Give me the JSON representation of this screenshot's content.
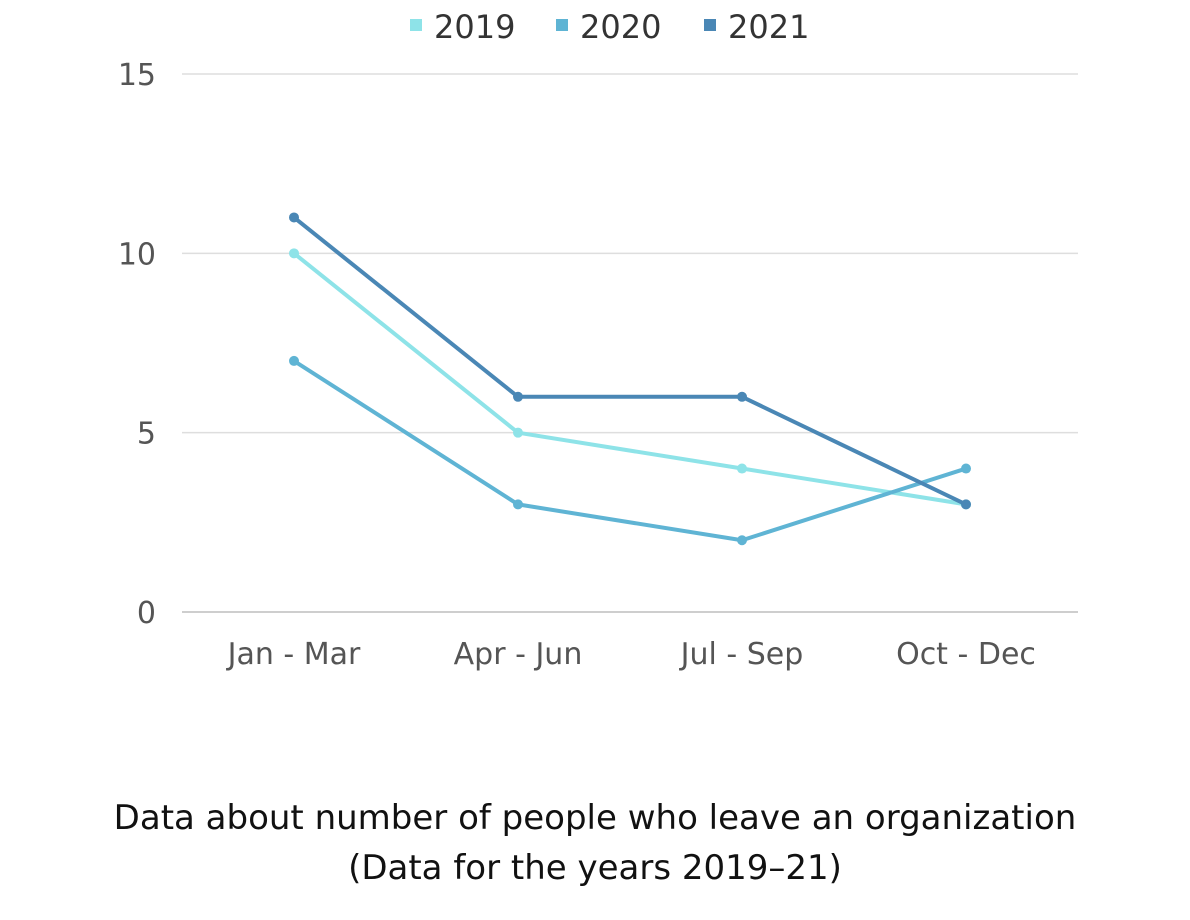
{
  "chart_data": {
    "type": "line",
    "categories": [
      "Jan - Mar",
      "Apr - Jun",
      "Jul - Sep",
      "Oct - Dec"
    ],
    "series": [
      {
        "name": "2019",
        "color": "#8ee3e8",
        "values": [
          10,
          5,
          4,
          3
        ]
      },
      {
        "name": "2020",
        "color": "#5fb4d4",
        "values": [
          7,
          3,
          2,
          4
        ]
      },
      {
        "name": "2021",
        "color": "#4a87b5",
        "values": [
          11,
          6,
          6,
          3
        ]
      }
    ],
    "y_ticks": [
      0,
      5,
      10,
      15
    ],
    "ylim": [
      0,
      15
    ],
    "grid": true,
    "legend_position": "top-center",
    "caption_line1": "Data about number of people who leave an organization",
    "caption_line2": "(Data for the years 2019–21)"
  }
}
